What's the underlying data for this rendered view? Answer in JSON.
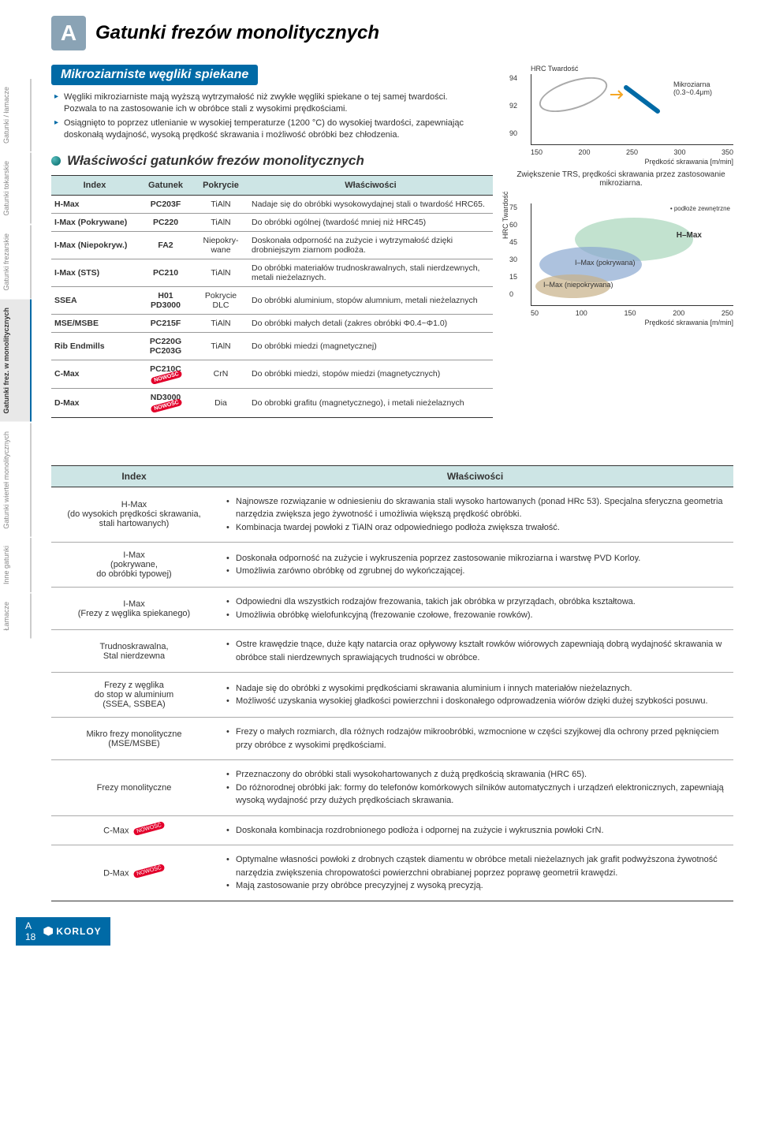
{
  "sideTabs": [
    "Gatunki / łamacze",
    "Gatunki tokarskie",
    "Gatunki frezarskie",
    "Gatunki frez. w monolitycznych",
    "Gatunki wierteł monolitycznych",
    "Inne gatunki",
    "Łamacze"
  ],
  "activeTabIndex": 3,
  "letterBadge": "A",
  "mainTitle": "Gatunki frezów monolitycznych",
  "subtitle": "Mikroziarniste węgliki spiekane",
  "bullets": [
    "Węgliki mikroziarniste mają wyższą wytrzymałość niż zwykłe węgliki spiekane o tej samej twardości. Pozwala to na zastosowanie ich w obróbce stali z wysokimi prędkościami.",
    "Osiągnięto to poprzez utlenianie w wysokiej temperaturze (1200 °C) do wysokiej twardości, zapewniając doskonałą wydajność, wysoką prędkość skrawania i możliwość obróbki bez chłodzenia."
  ],
  "subHeading": "Właściwości gatunków frezów monolitycznych",
  "t1": {
    "headers": [
      "Index",
      "Gatunek",
      "Pokrycie",
      "Właściwości"
    ],
    "rows": [
      {
        "idx": "H-Max",
        "gat": "PC203F",
        "pok": "TiAlN",
        "desc": "Nadaje się do obróbki wysokowydajnej stali o twardość HRC65.",
        "nowe": false
      },
      {
        "idx": "I-Max (Pokrywane)",
        "gat": "PC220",
        "pok": "TiAlN",
        "desc": "Do obróbki ogólnej (twardość mniej niż HRC45)",
        "nowe": false
      },
      {
        "idx": "I-Max (Niepokryw.)",
        "gat": "FA2",
        "pok": "Niepokry-wane",
        "desc": "Doskonała odporność na zużycie i wytrzymałość dzięki drobniejszym ziarnom podłoża.",
        "nowe": false
      },
      {
        "idx": "I-Max (STS)",
        "gat": "PC210",
        "pok": "TiAlN",
        "desc": "Do obróbki materiałów trudnoskrawalnych, stali nierdzewnych, metali nieżelaznych.",
        "nowe": false
      },
      {
        "idx": "SSEA",
        "gat": "H01\nPD3000",
        "pok": "Pokrycie DLC",
        "desc": "Do obróbki aluminium, stopów alumnium, metali nieżelaznych",
        "nowe": false
      },
      {
        "idx": "MSE/MSBE",
        "gat": "PC215F",
        "pok": "TiAlN",
        "desc": "Do obróbki małych detali (zakres obróbki Φ0.4~Φ1.0)",
        "nowe": false
      },
      {
        "idx": "Rib Endmills",
        "gat": "PC220G\nPC203G",
        "pok": "TiAlN",
        "desc": "Do obróbki miedzi (magnetycznej)",
        "nowe": false
      },
      {
        "idx": "C-Max",
        "gat": "PC210C",
        "pok": "CrN",
        "desc": "Do obróbki miedzi, stopów miedzi (magnetycznych)",
        "nowe": true
      },
      {
        "idx": "D-Max",
        "gat": "ND3000",
        "pok": "Dia",
        "desc": "Do obrobki grafitu (magnetycznego), i metali nieżelaznych",
        "nowe": true
      }
    ]
  },
  "chart1": {
    "yTitle": "HRC Twardość",
    "yticks": [
      "94",
      "92",
      "90"
    ],
    "xticks": [
      "150",
      "200",
      "250",
      "300",
      "350"
    ],
    "xlabel": "Prędkość skrawania [m/min]",
    "annot": "Mikroziarna (0.3~0.4μm)",
    "caption": "Zwiększenie TRS, prędkości skrawania przez zastosowanie mikroziarna."
  },
  "chart2": {
    "yTitle": "HRC Twardość",
    "yticks": [
      "75",
      "60",
      "45",
      "30",
      "15",
      "0"
    ],
    "xticks": [
      "50",
      "100",
      "150",
      "200",
      "250"
    ],
    "xlabel": "Prędkość skrawania [m/min]",
    "legend": "• podłoże zewnętrzne",
    "labels": {
      "hmax": "H–Max",
      "imaxP": "I–Max (pokrywana)",
      "imaxN": "I–Max (niepokrywana)"
    }
  },
  "t2": {
    "headers": [
      "Index",
      "Właściwości"
    ],
    "rows": [
      {
        "idx": "H-Max\n(do wysokich prędkości skrawania, stali hartowanych)",
        "props": [
          "Najnowsze rozwiązanie w odniesieniu do skrawania stali wysoko hartowanych (ponad HRc 53). Specjalna sferyczna geometria narzędzia zwiększa jego żywotność i umożliwia większą prędkość obróbki.",
          "Kombinacja twardej powłoki z TiAlN oraz odpowiedniego podłoża zwiększa trwałość."
        ],
        "nowe": false
      },
      {
        "idx": "I-Max\n(pokrywane,\ndo obróbki typowej)",
        "props": [
          "Doskonała odporność na zużycie i wykruszenia poprzez zastosowanie mikroziarna i warstwę PVD Korloy.",
          "Umożliwia zarówno obróbkę od zgrubnej do wykończającej."
        ],
        "nowe": false
      },
      {
        "idx": "I-Max\n(Frezy z węglika spiekanego)",
        "props": [
          "Odpowiedni dla wszystkich rodzajów frezowania, takich jak obróbka w przyrządach, obróbka kształtowa.",
          "Umożliwia obróbkę wielofunkcyjną (frezowanie czołowe, frezowanie rowków)."
        ],
        "nowe": false
      },
      {
        "idx": "Trudnoskrawalna,\nStal nierdzewna",
        "props": [
          "Ostre krawędzie tnące, duże kąty natarcia oraz opływowy kształt rowków wiórowych zapewniają dobrą wydajność skrawania w obróbce stali nierdzewnych sprawiających trudności w obróbce."
        ],
        "nowe": false
      },
      {
        "idx": "Frezy z węglika\ndo stop w aluminium\n(SSEA, SSBEA)",
        "props": [
          "Nadaje się do obróbki z wysokimi prędkościami skrawania aluminium i innych materiałów nieżelaznych.",
          "Możliwość uzyskania wysokiej gładkości powierzchni i doskonałego odprowadzenia wiórów dzięki dużej szybkości posuwu."
        ],
        "nowe": false
      },
      {
        "idx": "Mikro frezy monolityczne\n(MSE/MSBE)",
        "props": [
          "Frezy o małych rozmiarch, dla różnych rodzajów mikroobróbki, wzmocnione w części szyjkowej dla ochrony przed pęknięciem przy obróbce z wysokimi prędkościami."
        ],
        "nowe": false
      },
      {
        "idx": "Frezy monolityczne",
        "props": [
          "Przeznaczony do obróbki stali wysokohartowanych z dużą prędkością skrawania (HRC 65).",
          "Do różnorodnej obróbki jak: formy do telefonów komórkowych silników automatycznych i urządzeń elektronicznych, zapewniają wysoką wydajność przy dużych prędkościach skrawania."
        ],
        "nowe": false
      },
      {
        "idx": "C-Max",
        "props": [
          "Doskonała kombinacja rozdrobnionego podłoża i odpornej na zużycie i wykrusznia powłoki CrN."
        ],
        "nowe": true
      },
      {
        "idx": "D-Max",
        "props": [
          "Optymalne własności powłoki z drobnych cząstek diamentu w obróbce metali nieżelaznych jak grafit podwyższona żywotność narzędzia zwiększenia chropowatości powierzchni obrabianej poprzez poprawę geometrii krawędzi.",
          "Mają zastosowanie przy obróbce precyzyjnej z wysoką precyzją."
        ],
        "nowe": true
      }
    ]
  },
  "noweLabel": "NOWOŚĆ",
  "footer": {
    "page": "A 18",
    "brand": "KORLOY"
  }
}
